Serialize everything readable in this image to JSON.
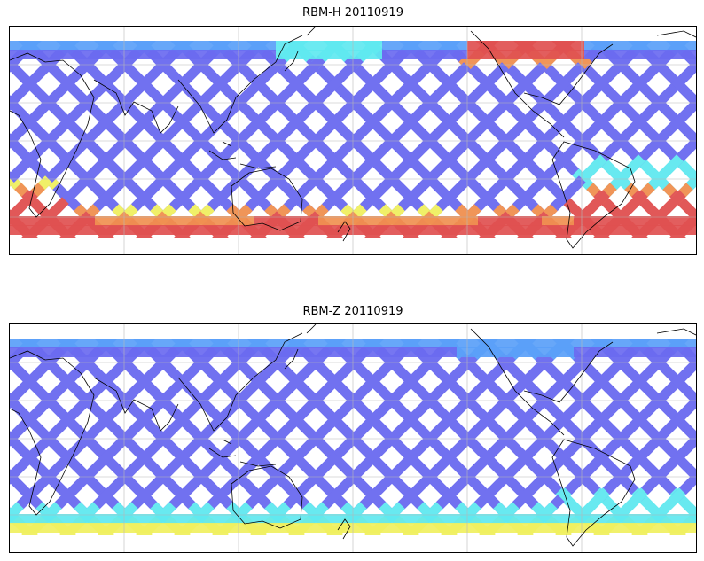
{
  "figure": {
    "panels": [
      {
        "title": "RBM-H 20110919",
        "colormap": "jet",
        "hot_regions": [
          "south-polar band",
          "north-atlantic high latitude",
          "south-atlantic high latitude"
        ]
      },
      {
        "title": "RBM-Z 20110919",
        "colormap": "jet",
        "hot_regions": [
          "south-polar band (moderate)",
          "south-atlantic (moderate)"
        ]
      }
    ],
    "colors": {
      "low": "#6a6af0",
      "low_mid": "#5aa0f8",
      "mid": "#60e8f0",
      "mid_high": "#f0f060",
      "high": "#f09050",
      "highest": "#e05050",
      "coast": "#000000",
      "grid": "#b8b8b8"
    }
  }
}
